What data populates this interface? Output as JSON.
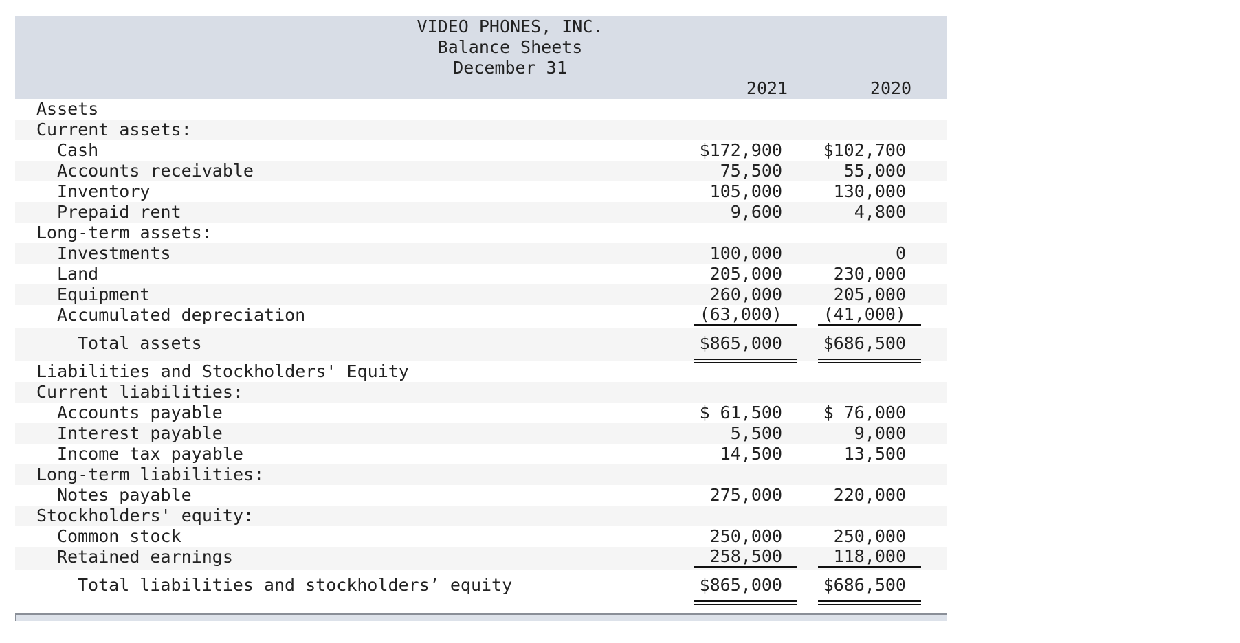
{
  "header": {
    "company": "VIDEO PHONES, INC.",
    "statement": "Balance Sheets",
    "date": "December 31",
    "years": [
      "2021",
      "2020"
    ]
  },
  "rows": [
    {
      "label": "Assets",
      "level": 0,
      "v1": "",
      "v2": "",
      "shade": false
    },
    {
      "label": "Current assets:",
      "level": 0,
      "v1": "",
      "v2": "",
      "shade": true
    },
    {
      "label": "Cash",
      "level": 1,
      "v1": "$172,900",
      "v2": "$102,700",
      "shade": false
    },
    {
      "label": "Accounts receivable",
      "level": 1,
      "v1": "75,500",
      "v2": "55,000",
      "shade": true
    },
    {
      "label": "Inventory",
      "level": 1,
      "v1": "105,000",
      "v2": "130,000",
      "shade": false
    },
    {
      "label": "Prepaid rent",
      "level": 1,
      "v1": "9,600",
      "v2": "4,800",
      "shade": true
    },
    {
      "label": "Long-term assets:",
      "level": 0,
      "v1": "",
      "v2": "",
      "shade": false
    },
    {
      "label": "Investments",
      "level": 1,
      "v1": "100,000",
      "v2": "0",
      "shade": true
    },
    {
      "label": "Land",
      "level": 1,
      "v1": "205,000",
      "v2": "230,000",
      "shade": false
    },
    {
      "label": "Equipment",
      "level": 1,
      "v1": "260,000",
      "v2": "205,000",
      "shade": true
    },
    {
      "label": "Accumulated depreciation",
      "level": 1,
      "v1": "(63,000)",
      "v2": "(41,000)",
      "shade": false,
      "rule": "single"
    },
    {
      "label": "Total assets",
      "level": 2,
      "v1": "$865,000",
      "v2": "$686,500",
      "shade": true,
      "rule": "double"
    },
    {
      "label": "Liabilities and Stockholders' Equity",
      "level": 0,
      "v1": "",
      "v2": "",
      "shade": false
    },
    {
      "label": "Current liabilities:",
      "level": 0,
      "v1": "",
      "v2": "",
      "shade": true
    },
    {
      "label": "Accounts payable",
      "level": 1,
      "v1": "$ 61,500",
      "v2": "$ 76,000",
      "shade": false
    },
    {
      "label": "Interest payable",
      "level": 1,
      "v1": "5,500",
      "v2": "9,000",
      "shade": true
    },
    {
      "label": "Income tax payable",
      "level": 1,
      "v1": "14,500",
      "v2": "13,500",
      "shade": false
    },
    {
      "label": "Long-term liabilities:",
      "level": 0,
      "v1": "",
      "v2": "",
      "shade": true
    },
    {
      "label": "Notes payable",
      "level": 1,
      "v1": "275,000",
      "v2": "220,000",
      "shade": false
    },
    {
      "label": "Stockholders' equity:",
      "level": 0,
      "v1": "",
      "v2": "",
      "shade": true
    },
    {
      "label": "Common stock",
      "level": 1,
      "v1": "250,000",
      "v2": "250,000",
      "shade": false
    },
    {
      "label": "Retained earnings",
      "level": 1,
      "v1": "258,500",
      "v2": "118,000",
      "shade": true,
      "rule": "single"
    },
    {
      "label": "Total liabilities and stockholders’ equity",
      "level": 2,
      "v1": "$865,000",
      "v2": "$686,500",
      "shade": false,
      "rule": "double"
    }
  ]
}
